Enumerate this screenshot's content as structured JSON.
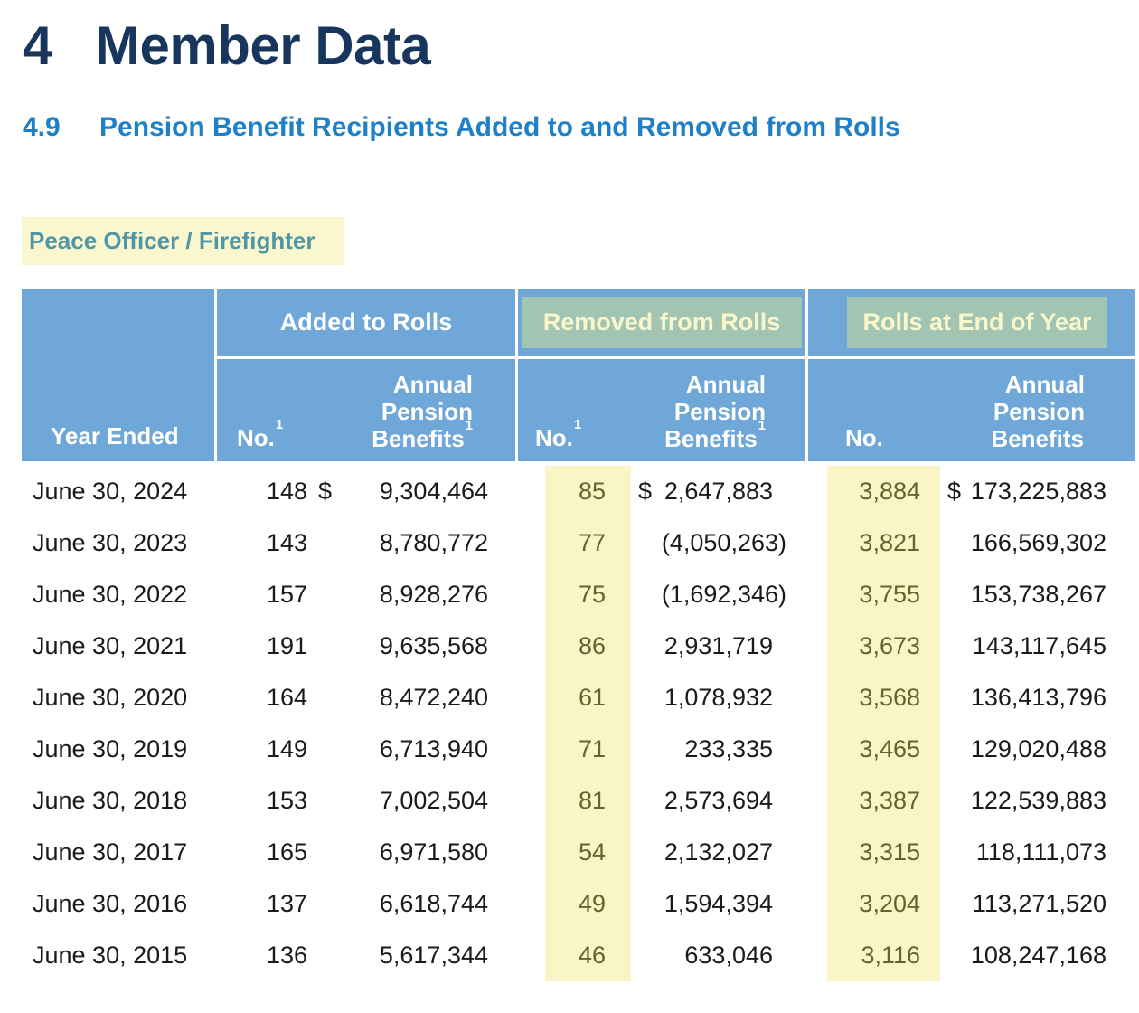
{
  "page": {
    "section_number": "4",
    "section_title": "Member Data",
    "subsection_number": "4.9",
    "subsection_title": "Pension Benefit Recipients Added to and Removed from Rolls",
    "category_label": "Peace Officer / Firefighter"
  },
  "colors": {
    "heading_navy": "#17355D",
    "subheading_blue": "#1E80C6",
    "category_teal": "#4F96A6",
    "table_header_blue": "#6FA7D9",
    "sage_highlight": "#A2C5B3",
    "sage_highlight_text": "#F8F6CA",
    "yellow_highlight_band": "#FAF5C6",
    "yellow_highlight_label": "#FAF7CE",
    "highlighted_number_olive": "#63642E",
    "body_text": "#1A1A1A"
  },
  "table": {
    "groups": {
      "added": "Added to Rolls",
      "removed": "Removed from Rolls",
      "rolls": "Rolls at End of Year"
    },
    "columns": {
      "year": {
        "label": "Year Ended"
      },
      "added_no": {
        "label": "No.",
        "sup": "1"
      },
      "added_benefits": {
        "lines": [
          "Annual",
          "Pension",
          "Benefits"
        ],
        "sup": "1"
      },
      "removed_no": {
        "label": "No.",
        "sup": "1"
      },
      "removed_benefits": {
        "lines": [
          "Annual",
          "Pension",
          "Benefits"
        ],
        "sup": "1"
      },
      "rolls_no": {
        "label": "No.",
        "sup": ""
      },
      "rolls_benefits": {
        "lines": [
          "Annual",
          "Pension",
          "Benefits"
        ],
        "sup": ""
      }
    },
    "rows": [
      {
        "year": "June 30, 2024",
        "added_no": "148",
        "added_cur": "$",
        "added_benefits": "9,304,464",
        "removed_no": "85",
        "removed_cur": "$",
        "removed_benefits": "2,647,883",
        "rolls_no": "3,884",
        "rolls_cur": "$",
        "rolls_benefits": "173,225,883"
      },
      {
        "year": "June 30, 2023",
        "added_no": "143",
        "added_cur": "",
        "added_benefits": "8,780,772",
        "removed_no": "77",
        "removed_cur": "",
        "removed_benefits": "(4,050,263)",
        "rolls_no": "3,821",
        "rolls_cur": "",
        "rolls_benefits": "166,569,302"
      },
      {
        "year": "June 30, 2022",
        "added_no": "157",
        "added_cur": "",
        "added_benefits": "8,928,276",
        "removed_no": "75",
        "removed_cur": "",
        "removed_benefits": "(1,692,346)",
        "rolls_no": "3,755",
        "rolls_cur": "",
        "rolls_benefits": "153,738,267"
      },
      {
        "year": "June 30, 2021",
        "added_no": "191",
        "added_cur": "",
        "added_benefits": "9,635,568",
        "removed_no": "86",
        "removed_cur": "",
        "removed_benefits": "2,931,719",
        "rolls_no": "3,673",
        "rolls_cur": "",
        "rolls_benefits": "143,117,645"
      },
      {
        "year": "June 30, 2020",
        "added_no": "164",
        "added_cur": "",
        "added_benefits": "8,472,240",
        "removed_no": "61",
        "removed_cur": "",
        "removed_benefits": "1,078,932",
        "rolls_no": "3,568",
        "rolls_cur": "",
        "rolls_benefits": "136,413,796"
      },
      {
        "year": "June 30, 2019",
        "added_no": "149",
        "added_cur": "",
        "added_benefits": "6,713,940",
        "removed_no": "71",
        "removed_cur": "",
        "removed_benefits": "233,335",
        "rolls_no": "3,465",
        "rolls_cur": "",
        "rolls_benefits": "129,020,488"
      },
      {
        "year": "June 30, 2018",
        "added_no": "153",
        "added_cur": "",
        "added_benefits": "7,002,504",
        "removed_no": "81",
        "removed_cur": "",
        "removed_benefits": "2,573,694",
        "rolls_no": "3,387",
        "rolls_cur": "",
        "rolls_benefits": "122,539,883"
      },
      {
        "year": "June 30, 2017",
        "added_no": "165",
        "added_cur": "",
        "added_benefits": "6,971,580",
        "removed_no": "54",
        "removed_cur": "",
        "removed_benefits": "2,132,027",
        "rolls_no": "3,315",
        "rolls_cur": "",
        "rolls_benefits": "118,111,073"
      },
      {
        "year": "June 30, 2016",
        "added_no": "137",
        "added_cur": "",
        "added_benefits": "6,618,744",
        "removed_no": "49",
        "removed_cur": "",
        "removed_benefits": "1,594,394",
        "rolls_no": "3,204",
        "rolls_cur": "",
        "rolls_benefits": "113,271,520"
      },
      {
        "year": "June 30, 2015",
        "added_no": "136",
        "added_cur": "",
        "added_benefits": "5,617,344",
        "removed_no": "46",
        "removed_cur": "",
        "removed_benefits": "633,046",
        "rolls_no": "3,116",
        "rolls_cur": "",
        "rolls_benefits": "108,247,168"
      }
    ]
  }
}
